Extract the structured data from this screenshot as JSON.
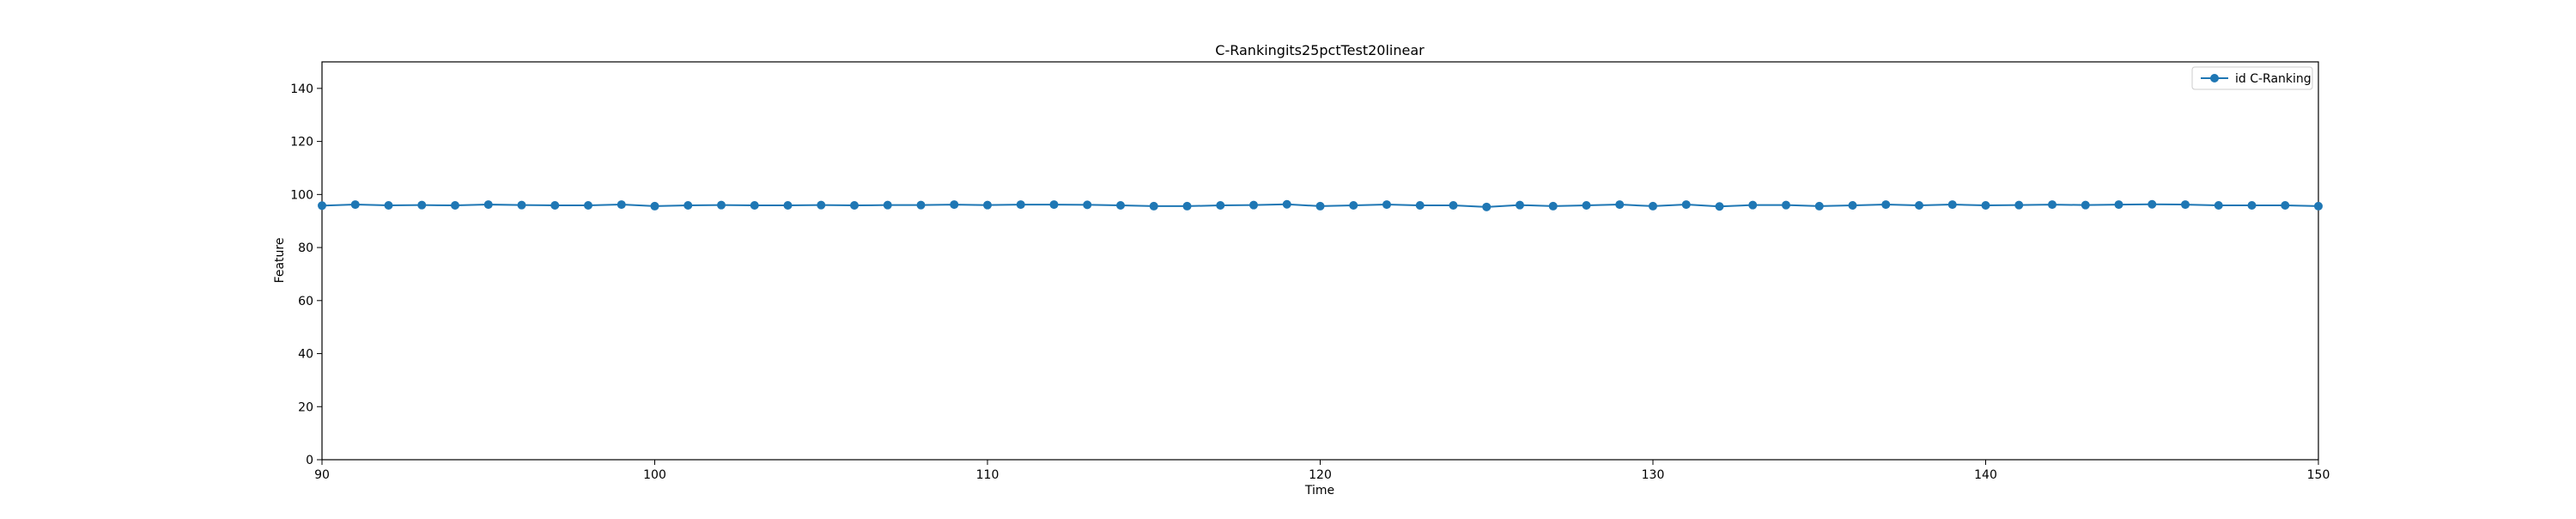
{
  "chart_data": {
    "type": "line",
    "title": "C-Rankingits25pctTest20linear",
    "xlabel": "Time",
    "ylabel": "Feature",
    "xlim": [
      90,
      150
    ],
    "ylim": [
      0,
      150
    ],
    "x_ticks": [
      90,
      100,
      110,
      120,
      130,
      140,
      150
    ],
    "y_ticks": [
      0,
      20,
      40,
      60,
      80,
      100,
      120,
      140
    ],
    "grid": false,
    "legend_position": "top-right",
    "series": [
      {
        "name": "id C-Ranking",
        "color": "#1f77b4",
        "marker": "circle",
        "x": [
          90,
          91,
          92,
          93,
          94,
          95,
          96,
          97,
          98,
          99,
          100,
          101,
          102,
          103,
          104,
          105,
          106,
          107,
          108,
          109,
          110,
          111,
          112,
          113,
          114,
          115,
          116,
          117,
          118,
          119,
          120,
          121,
          122,
          123,
          124,
          125,
          126,
          127,
          128,
          129,
          130,
          131,
          132,
          133,
          134,
          135,
          136,
          137,
          138,
          139,
          140,
          141,
          142,
          143,
          144,
          145,
          146,
          147,
          148,
          149,
          150
        ],
        "y": [
          95.8,
          96.2,
          95.9,
          96.0,
          95.9,
          96.2,
          96.0,
          95.9,
          95.9,
          96.2,
          95.6,
          95.9,
          96.0,
          95.9,
          95.9,
          96.0,
          95.9,
          96.0,
          96.0,
          96.2,
          96.0,
          96.2,
          96.2,
          96.1,
          95.9,
          95.6,
          95.6,
          95.9,
          96.0,
          96.3,
          95.6,
          95.9,
          96.2,
          95.9,
          95.9,
          95.3,
          96.0,
          95.6,
          95.9,
          96.2,
          95.6,
          96.2,
          95.5,
          96.0,
          96.0,
          95.6,
          95.9,
          96.2,
          95.9,
          96.2,
          95.9,
          96.0,
          96.2,
          96.0,
          96.2,
          96.3,
          96.2,
          95.9,
          95.9,
          95.9,
          95.6
        ]
      }
    ]
  }
}
